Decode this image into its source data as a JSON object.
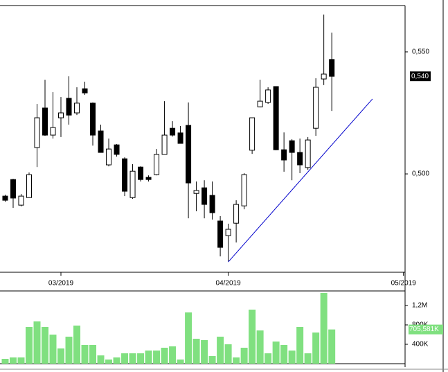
{
  "chart_data": {
    "type": "candlestick",
    "x": [
      -7,
      -6,
      -5,
      -4,
      -3,
      -2,
      -1,
      0,
      1,
      2,
      3,
      4,
      5,
      6,
      7,
      8,
      9,
      10,
      11,
      12,
      13,
      14,
      15,
      16,
      17,
      18,
      19,
      20,
      21,
      22,
      23,
      24,
      25,
      26,
      27,
      28,
      29,
      30,
      31,
      32,
      33,
      34
    ],
    "open": [
      0.4909,
      0.4977,
      0.4872,
      0.4903,
      0.5108,
      0.527,
      0.5159,
      0.523,
      0.531,
      0.525,
      0.5349,
      0.529,
      0.5176,
      0.5037,
      0.5119,
      0.5062,
      0.4903,
      0.5028,
      0.4986,
      0.4997,
      0.508,
      0.5187,
      0.5168,
      0.5199,
      0.492,
      0.4943,
      0.4912,
      0.4807,
      0.4747,
      0.4798,
      0.4869,
      0.5097,
      0.5275,
      0.5293,
      0.5358,
      0.5099,
      0.5136,
      0.5088,
      0.5026,
      0.5187,
      0.5389,
      0.5469
    ],
    "high": [
      0.4915,
      0.498,
      0.4918,
      0.5006,
      0.5287,
      0.5386,
      0.5335,
      0.5315,
      0.54,
      0.5355,
      0.5378,
      0.5293,
      0.5202,
      0.5145,
      0.5122,
      0.5068,
      0.504,
      0.5031,
      0.4994,
      0.5102,
      0.5298,
      0.5216,
      0.5196,
      0.5293,
      0.4969,
      0.4974,
      0.4969,
      0.4827,
      0.4796,
      0.4892,
      0.5003,
      0.523,
      0.5386,
      0.5355,
      0.5358,
      0.517,
      0.5142,
      0.5145,
      0.5151,
      0.5392,
      0.5653,
      0.5579
    ],
    "low": [
      0.4886,
      0.4861,
      0.4867,
      0.4903,
      0.5028,
      0.5156,
      0.5145,
      0.5151,
      0.5202,
      0.5241,
      0.5324,
      0.5116,
      0.5088,
      0.5031,
      0.5071,
      0.4909,
      0.4898,
      0.4969,
      0.4969,
      0.4994,
      0.508,
      0.5153,
      0.5125,
      0.4818,
      0.4847,
      0.4818,
      0.4813,
      0.4662,
      0.4642,
      0.4719,
      0.4855,
      0.5082,
      0.5273,
      0.5287,
      0.5097,
      0.5009,
      0.4974,
      0.5003,
      0.5017,
      0.5156,
      0.5364,
      0.5258
    ],
    "close": [
      0.4892,
      0.4901,
      0.4909,
      0.4997,
      0.523,
      0.5159,
      0.519,
      0.525,
      0.5241,
      0.529,
      0.5332,
      0.5159,
      0.5088,
      0.5102,
      0.508,
      0.4929,
      0.5011,
      0.4977,
      0.4977,
      0.508,
      0.5159,
      0.5159,
      0.5125,
      0.4963,
      0.4932,
      0.4875,
      0.4841,
      0.4699,
      0.4773,
      0.4875,
      0.4997,
      0.523,
      0.5298,
      0.5344,
      0.5099,
      0.5057,
      0.5088,
      0.5037,
      0.5139,
      0.5355,
      0.5409,
      0.54
    ],
    "volume": [
      100000,
      129000,
      129000,
      757000,
      872000,
      757000,
      600000,
      314000,
      557000,
      786000,
      386000,
      386000,
      171000,
      86000,
      129000,
      214000,
      214000,
      214000,
      271000,
      271000,
      329000,
      357000,
      86000,
      1057000,
      514000,
      486000,
      157000,
      557000,
      400000,
      129000,
      329000,
      1115000,
      686000,
      214000,
      457000,
      386000,
      271000,
      757000,
      214000,
      643000,
      1458000,
      705581
    ],
    "up_color": "#ffffff",
    "down_color": "#000000",
    "volume_color": "#80e080",
    "xlim": [
      -7.65,
      43.2
    ],
    "xticks": [
      {
        "value": 0,
        "label": "03/2019"
      },
      {
        "value": 21,
        "label": "04/2019"
      },
      {
        "value": 43,
        "label": "05/2019"
      }
    ],
    "ylim": [
      0.4597,
      0.569
    ],
    "yticks": [
      {
        "value": 0.5,
        "label": "0,500"
      },
      {
        "value": 0.55,
        "label": "0,550"
      }
    ],
    "last_price": {
      "value": 0.54,
      "label": "0,540"
    },
    "volume_ylim": [
      0,
      1500000
    ],
    "volume_ticks": [
      {
        "value": 400000,
        "label": "400K"
      },
      {
        "value": 800000,
        "label": "800K"
      },
      {
        "value": 1200000,
        "label": "1,2M"
      }
    ],
    "last_volume": {
      "value": 705581,
      "label": "705,581K"
    },
    "trendline": {
      "x": [
        21,
        39.1
      ],
      "y": [
        0.4639,
        0.5307
      ],
      "color": "#0000cc"
    }
  }
}
